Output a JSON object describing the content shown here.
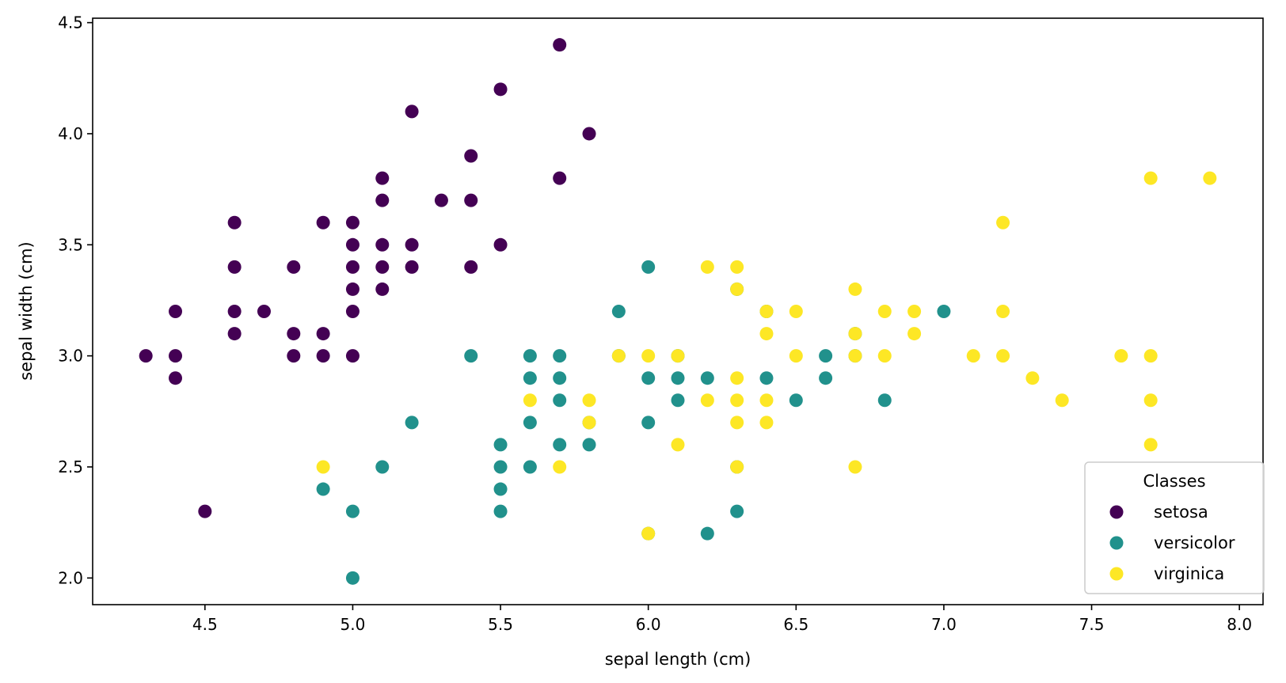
{
  "chart_data": {
    "type": "scatter",
    "title": "",
    "xlabel": "sepal length (cm)",
    "ylabel": "sepal width (cm)",
    "xlim": [
      4.12,
      8.08
    ],
    "ylim": [
      1.88,
      4.52
    ],
    "xticks": [
      "4.5",
      "5.0",
      "5.5",
      "6.0",
      "6.5",
      "7.0",
      "7.5",
      "8.0"
    ],
    "yticks": [
      "2.0",
      "2.5",
      "3.0",
      "3.5",
      "4.0",
      "4.5"
    ],
    "grid": false,
    "legend": {
      "title": "Classes",
      "position": "lower-right"
    },
    "series": [
      {
        "name": "setosa",
        "color": "#440154",
        "points": [
          [
            4.3,
            3.0
          ],
          [
            4.4,
            2.9
          ],
          [
            4.4,
            3.0
          ],
          [
            4.4,
            3.2
          ],
          [
            4.5,
            2.3
          ],
          [
            4.6,
            3.1
          ],
          [
            4.6,
            3.2
          ],
          [
            4.6,
            3.4
          ],
          [
            4.6,
            3.6
          ],
          [
            4.7,
            3.2
          ],
          [
            4.8,
            3.0
          ],
          [
            4.8,
            3.1
          ],
          [
            4.8,
            3.4
          ],
          [
            4.9,
            3.0
          ],
          [
            4.9,
            3.1
          ],
          [
            4.9,
            3.6
          ],
          [
            5.0,
            3.0
          ],
          [
            5.0,
            3.2
          ],
          [
            5.0,
            3.3
          ],
          [
            5.0,
            3.4
          ],
          [
            5.0,
            3.5
          ],
          [
            5.0,
            3.6
          ],
          [
            5.1,
            3.3
          ],
          [
            5.1,
            3.4
          ],
          [
            5.1,
            3.5
          ],
          [
            5.1,
            3.7
          ],
          [
            5.1,
            3.8
          ],
          [
            5.2,
            3.4
          ],
          [
            5.2,
            3.5
          ],
          [
            5.2,
            4.1
          ],
          [
            5.3,
            3.7
          ],
          [
            5.4,
            3.4
          ],
          [
            5.4,
            3.7
          ],
          [
            5.4,
            3.9
          ],
          [
            5.5,
            3.5
          ],
          [
            5.5,
            4.2
          ],
          [
            5.7,
            3.8
          ],
          [
            5.7,
            4.4
          ],
          [
            5.8,
            4.0
          ]
        ]
      },
      {
        "name": "versicolor",
        "color": "#21918c",
        "points": [
          [
            4.9,
            2.4
          ],
          [
            5.0,
            2.0
          ],
          [
            5.0,
            2.3
          ],
          [
            5.1,
            2.5
          ],
          [
            5.2,
            2.7
          ],
          [
            5.4,
            3.0
          ],
          [
            5.5,
            2.3
          ],
          [
            5.5,
            2.4
          ],
          [
            5.5,
            2.5
          ],
          [
            5.5,
            2.6
          ],
          [
            5.6,
            2.5
          ],
          [
            5.6,
            2.7
          ],
          [
            5.6,
            2.9
          ],
          [
            5.6,
            3.0
          ],
          [
            5.7,
            2.6
          ],
          [
            5.7,
            2.8
          ],
          [
            5.7,
            2.9
          ],
          [
            5.7,
            3.0
          ],
          [
            5.8,
            2.6
          ],
          [
            5.8,
            2.7
          ],
          [
            5.9,
            3.0
          ],
          [
            5.9,
            3.2
          ],
          [
            6.0,
            2.2
          ],
          [
            6.0,
            2.7
          ],
          [
            6.0,
            2.9
          ],
          [
            6.0,
            3.4
          ],
          [
            6.1,
            2.8
          ],
          [
            6.1,
            2.9
          ],
          [
            6.1,
            3.0
          ],
          [
            6.2,
            2.2
          ],
          [
            6.2,
            2.9
          ],
          [
            6.3,
            2.3
          ],
          [
            6.3,
            2.5
          ],
          [
            6.3,
            3.3
          ],
          [
            6.4,
            2.9
          ],
          [
            6.4,
            3.2
          ],
          [
            6.5,
            2.8
          ],
          [
            6.6,
            2.9
          ],
          [
            6.6,
            3.0
          ],
          [
            6.7,
            3.0
          ],
          [
            6.7,
            3.1
          ],
          [
            6.8,
            2.8
          ],
          [
            7.0,
            3.2
          ]
        ]
      },
      {
        "name": "virginica",
        "color": "#fde725",
        "points": [
          [
            4.9,
            2.5
          ],
          [
            5.6,
            2.8
          ],
          [
            5.7,
            2.5
          ],
          [
            5.8,
            2.7
          ],
          [
            5.8,
            2.8
          ],
          [
            5.9,
            3.0
          ],
          [
            6.0,
            2.2
          ],
          [
            6.0,
            3.0
          ],
          [
            6.1,
            2.6
          ],
          [
            6.1,
            3.0
          ],
          [
            6.2,
            2.8
          ],
          [
            6.2,
            3.4
          ],
          [
            6.3,
            2.5
          ],
          [
            6.3,
            2.7
          ],
          [
            6.3,
            2.8
          ],
          [
            6.3,
            2.9
          ],
          [
            6.3,
            3.3
          ],
          [
            6.3,
            3.4
          ],
          [
            6.4,
            2.7
          ],
          [
            6.4,
            2.8
          ],
          [
            6.4,
            3.1
          ],
          [
            6.4,
            3.2
          ],
          [
            6.5,
            3.0
          ],
          [
            6.5,
            3.2
          ],
          [
            6.7,
            2.5
          ],
          [
            6.7,
            3.0
          ],
          [
            6.7,
            3.1
          ],
          [
            6.7,
            3.3
          ],
          [
            6.8,
            3.0
          ],
          [
            6.8,
            3.2
          ],
          [
            6.9,
            3.1
          ],
          [
            6.9,
            3.2
          ],
          [
            7.1,
            3.0
          ],
          [
            7.2,
            3.0
          ],
          [
            7.2,
            3.2
          ],
          [
            7.2,
            3.6
          ],
          [
            7.3,
            2.9
          ],
          [
            7.4,
            2.8
          ],
          [
            7.6,
            3.0
          ],
          [
            7.7,
            2.6
          ],
          [
            7.7,
            2.8
          ],
          [
            7.7,
            3.0
          ],
          [
            7.7,
            3.8
          ],
          [
            7.9,
            3.8
          ]
        ]
      }
    ]
  }
}
